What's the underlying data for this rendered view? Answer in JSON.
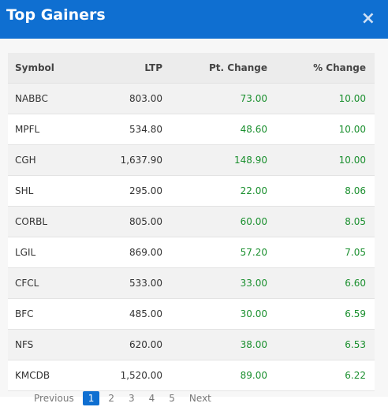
{
  "header": {
    "title": "Top Gainers",
    "close": "×"
  },
  "table": {
    "columns": [
      "Symbol",
      "LTP",
      "Pt. Change",
      "% Change"
    ],
    "rows": [
      [
        "NABBC",
        "803.00",
        "73.00",
        "10.00"
      ],
      [
        "MPFL",
        "534.80",
        "48.60",
        "10.00"
      ],
      [
        "CGH",
        "1,637.90",
        "148.90",
        "10.00"
      ],
      [
        "SHL",
        "295.00",
        "22.00",
        "8.06"
      ],
      [
        "CORBL",
        "805.00",
        "60.00",
        "8.05"
      ],
      [
        "LGIL",
        "869.00",
        "57.20",
        "7.05"
      ],
      [
        "CFCL",
        "533.00",
        "33.00",
        "6.60"
      ],
      [
        "BFC",
        "485.00",
        "30.00",
        "6.59"
      ],
      [
        "NFS",
        "620.00",
        "38.00",
        "6.53"
      ],
      [
        "KMCDB",
        "1,520.00",
        "89.00",
        "6.22"
      ]
    ]
  },
  "pagination": [
    "Previous",
    "1",
    "2",
    "3",
    "4",
    "5",
    "Next"
  ]
}
